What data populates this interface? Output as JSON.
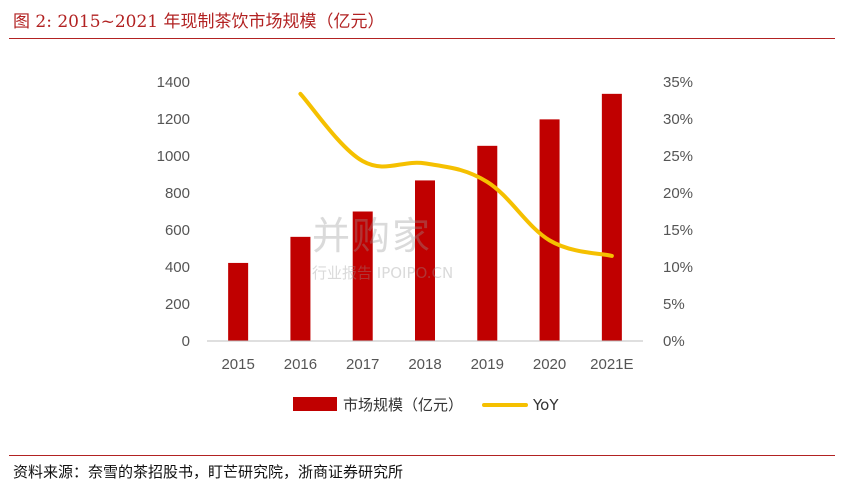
{
  "figure": {
    "title": "图 2:    2015~2021 年现制茶饮市场规模（亿元）",
    "source": "资料来源：奈雪的茶招股书，盯芒研究院，浙商证券研究所"
  },
  "watermark": {
    "main": "并购家",
    "sub": "行业报告 IPOIPO.CN"
  },
  "chart_data": {
    "type": "bar",
    "title": "2015~2021 年现制茶饮市场规模（亿元）",
    "categories": [
      "2015",
      "2016",
      "2017",
      "2018",
      "2019",
      "2020",
      "2021E"
    ],
    "series": [
      {
        "name": "市场规模（亿元）",
        "type": "bar",
        "axis": "left",
        "color": "#c00000",
        "values": [
          422,
          563,
          700,
          868,
          1055,
          1198,
          1336
        ]
      },
      {
        "name": "YoY",
        "type": "line",
        "axis": "right",
        "color": "#f5c000",
        "values": [
          null,
          33.4,
          24.3,
          24.0,
          21.5,
          13.6,
          11.5
        ]
      }
    ],
    "y_left": {
      "min": 0,
      "max": 1400,
      "step": 200,
      "ticks": [
        "0",
        "200",
        "400",
        "600",
        "800",
        "1000",
        "1200",
        "1400"
      ]
    },
    "y_right": {
      "min": 0,
      "max": 35,
      "step": 5,
      "ticks": [
        "0%",
        "5%",
        "10%",
        "15%",
        "20%",
        "25%",
        "30%",
        "35%"
      ]
    },
    "grid": false,
    "legend": "bottom"
  }
}
